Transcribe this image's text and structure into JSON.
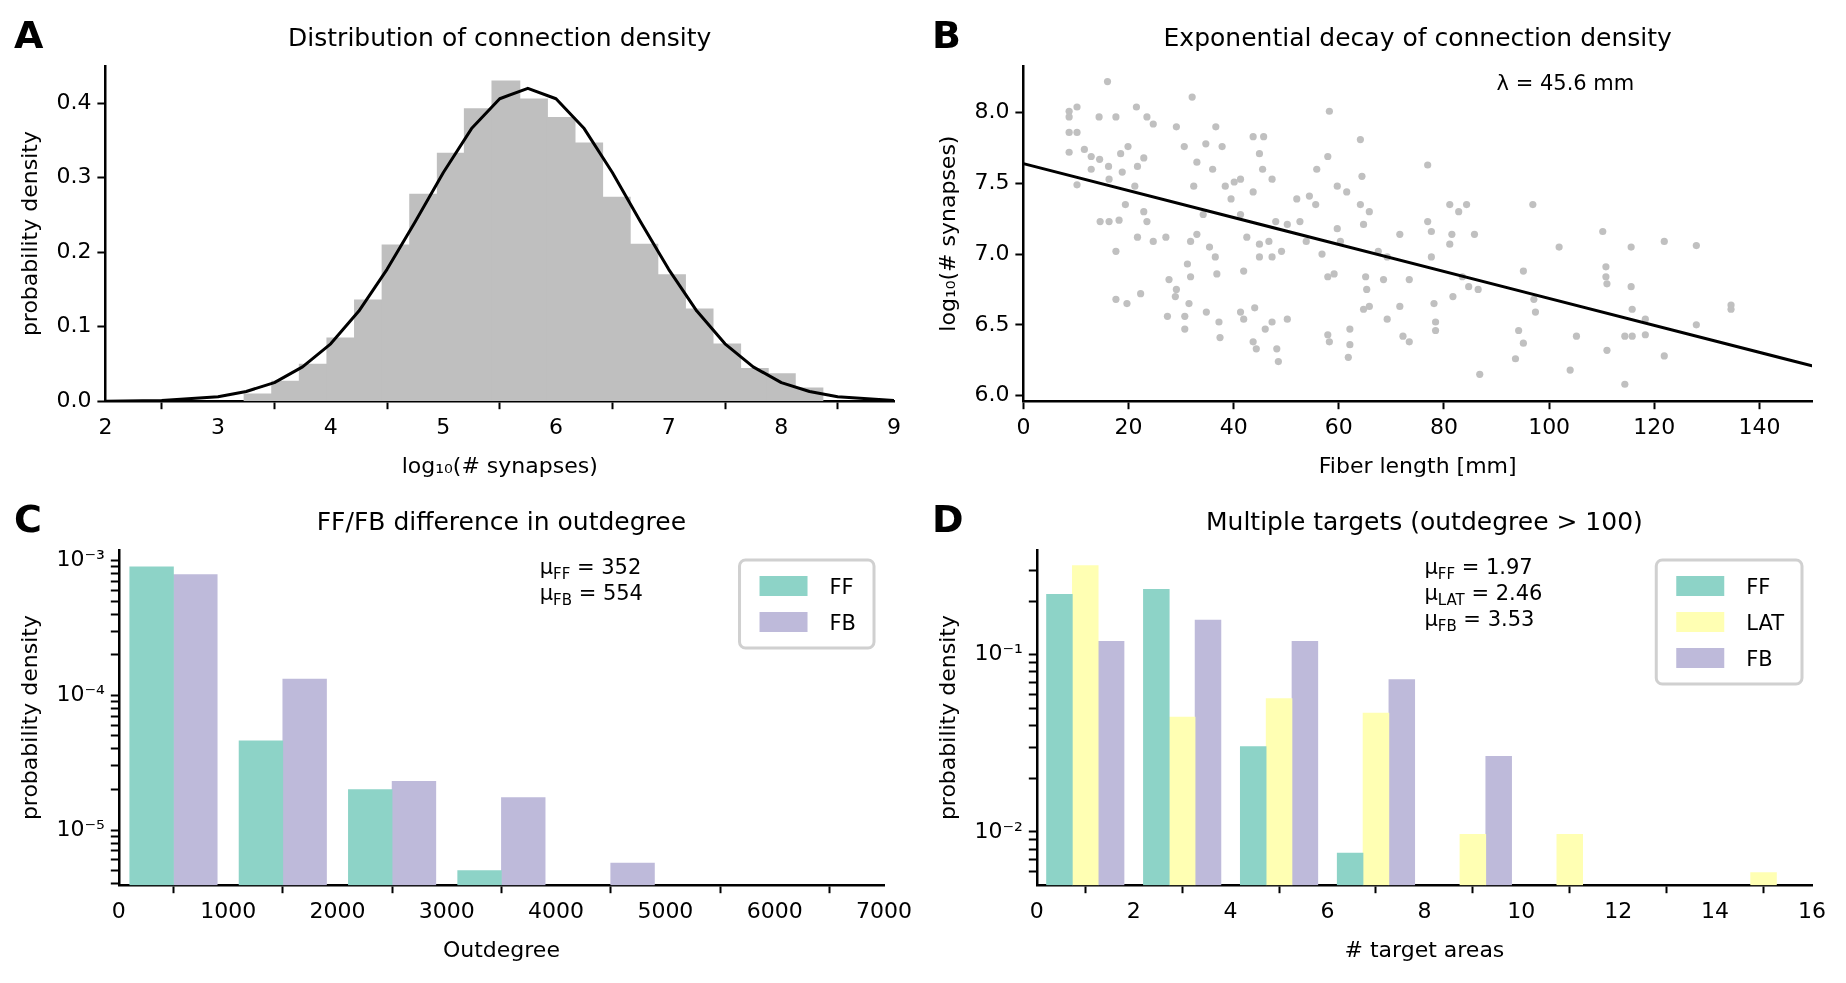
{
  "chart_data": [
    {
      "type": "histogram",
      "title": "Distribution of connection density",
      "xlabel": "log₁₀(# synapses)",
      "ylabel": "probability density",
      "annotations": [
        "A"
      ],
      "bins": [
        3.23,
        3.48,
        3.72,
        3.97,
        4.21,
        4.46,
        4.7,
        4.95,
        5.19,
        5.43,
        5.68,
        5.92,
        6.17,
        6.41,
        6.66,
        6.9,
        7.15,
        7.39,
        7.64,
        7.88,
        8.12,
        8.37
      ],
      "series": [
        {
          "color": "#bfbfbf",
          "values": [
            0.01,
            0.027,
            0.05,
            0.085,
            0.136,
            0.21,
            0.278,
            0.333,
            0.393,
            0.43,
            0.406,
            0.381,
            0.347,
            0.274,
            0.211,
            0.17,
            0.124,
            0.077,
            0.044,
            0.037,
            0.018
          ]
        },
        {
          "type": "line",
          "color": "#000000",
          "x": [
            2,
            2.5,
            3,
            3.25,
            3.5,
            3.75,
            4,
            4.25,
            4.5,
            4.75,
            5,
            5.25,
            5.5,
            5.75,
            6,
            6.25,
            6.5,
            6.75,
            7,
            7.25,
            7.5,
            7.75,
            8,
            8.25,
            8.5,
            9
          ],
          "values": [
            0,
            0.001,
            0.006,
            0.013,
            0.025,
            0.046,
            0.077,
            0.121,
            0.177,
            0.241,
            0.307,
            0.366,
            0.406,
            0.42,
            0.406,
            0.366,
            0.307,
            0.241,
            0.177,
            0.121,
            0.077,
            0.046,
            0.025,
            0.013,
            0.006,
            0.001
          ]
        }
      ],
      "xlim": [
        2,
        9
      ],
      "xticks": [
        2,
        3,
        4,
        5,
        6,
        7,
        8,
        9
      ],
      "ylim": [
        0,
        0.45
      ],
      "yticks": [
        {
          "value": 0,
          "label": "0.0"
        },
        0.1,
        0.2,
        0.3,
        0.4
      ]
    },
    {
      "type": "scatter",
      "title": "Exponential decay of connection density",
      "xlabel": "Fiber length [mm]",
      "ylabel": "log₁₀(# synapses)",
      "annotations": [
        "B",
        "λ = 45.6 mm"
      ],
      "series": [
        {
          "color": "#c0c0c0",
          "marker": "circle",
          "x": [
            8.7,
            8.7,
            10.2,
            8.7,
            10.2,
            8.7,
            10.2,
            16.0,
            14.4,
            17.6,
            21.5,
            23.5,
            24.7,
            29.1,
            32.1,
            30.6,
            11.6,
            12.9,
            14.5,
            16.2,
            18.5,
            19.9,
            21.7,
            22.9,
            12.9,
            16.3,
            18.8,
            21.2,
            14.6,
            16.3,
            19.4,
            18.2,
            22.9,
            23.5,
            24.7,
            21.7,
            17.6,
            17.6,
            19.7,
            22.3,
            27.1,
            27.7,
            29.1,
            28.9,
            27.4,
            30.7,
            30.7,
            31.5,
            31.8,
            31.2,
            31.8,
            33.0,
            34.2,
            34.8,
            37.2,
            37.4,
            36.8,
            36.5,
            35.4,
            32.4,
            33.0,
            34.7,
            36.6,
            37.8,
            36.0,
            38.4,
            39.5,
            40.1,
            41.3,
            43.7,
            45.7,
            44.9,
            45.5,
            47.3,
            43.7,
            41.3,
            42.5,
            44.9,
            46.7,
            47.3,
            44.9,
            41.9,
            41.3,
            41.9,
            44.0,
            43.7,
            44.3,
            46.0,
            47.3,
            48.2,
            48.5,
            50.2,
            49.1,
            48.0,
            50.2,
            52.0,
            52.6,
            53.8,
            54.4,
            55.6,
            55.8,
            56.8,
            58.2,
            57.9,
            57.9,
            57.9,
            58.2,
            59.7,
            59.7,
            60.3,
            59.1,
            61.5,
            61.8,
            62.1,
            62.1,
            64.1,
            64.4,
            64.1,
            64.7,
            65.1,
            65.3,
            65.8,
            65.8,
            64.7,
            67.5,
            69.2,
            69.2,
            68.5,
            71.6,
            71.6,
            72.2,
            73.4,
            73.4,
            76.9,
            76.9,
            77.6,
            77.6,
            78.1,
            78.4,
            78.4,
            81.1,
            81.5,
            81.1,
            81.7,
            82.8,
            84.3,
            83.5,
            84.7,
            85.8,
            86.5,
            86.8,
            95.1,
            94.2,
            93.6,
            95.1,
            96.9,
            97.1,
            97.4,
            101.9,
            104.0,
            105.2,
            110.2,
            110.8,
            110.8,
            111.0,
            111.0,
            114.4,
            115.6,
            115.6,
            115.8,
            115.8,
            114.4,
            118.3,
            118.3,
            121.9,
            121.9,
            128.0,
            128.0,
            134.6,
            134.6
          ],
          "values": [
            8.01,
            7.97,
            8.04,
            7.86,
            7.86,
            7.72,
            7.49,
            8.22,
            7.97,
            7.97,
            8.04,
            7.97,
            7.92,
            7.9,
            8.11,
            7.76,
            7.74,
            7.69,
            7.67,
            7.62,
            7.71,
            7.76,
            7.62,
            7.68,
            7.6,
            7.53,
            7.58,
            7.48,
            7.23,
            7.23,
            7.35,
            7.24,
            7.3,
            7.23,
            7.09,
            7.12,
            7.02,
            6.68,
            6.65,
            6.72,
            7.12,
            6.82,
            6.75,
            6.7,
            6.56,
            6.56,
            6.47,
            6.65,
            6.84,
            6.93,
            7.09,
            7.14,
            7.28,
            6.59,
            6.52,
            6.41,
            6.86,
            6.98,
            7.05,
            7.48,
            7.65,
            7.78,
            7.9,
            7.76,
            7.6,
            7.48,
            7.39,
            7.51,
            7.53,
            7.83,
            7.83,
            7.71,
            7.6,
            7.53,
            7.44,
            7.28,
            7.12,
            7.07,
            7.09,
            6.98,
            6.98,
            6.88,
            6.59,
            6.54,
            6.62,
            6.38,
            6.33,
            6.47,
            6.52,
            6.33,
            6.24,
            6.54,
            7.02,
            7.23,
            7.21,
            7.39,
            7.23,
            7.09,
            7.41,
            7.35,
            7.6,
            7.0,
            8.01,
            7.69,
            6.84,
            6.43,
            6.38,
            7.48,
            7.18,
            7.09,
            6.86,
            7.44,
            6.27,
            6.47,
            6.36,
            7.81,
            7.55,
            7.35,
            7.21,
            6.84,
            6.75,
            7.3,
            6.63,
            6.61,
            7.02,
            6.98,
            6.54,
            6.82,
            7.14,
            6.63,
            6.42,
            6.38,
            6.82,
            7.63,
            7.23,
            7.16,
            6.98,
            6.65,
            6.52,
            6.46,
            7.35,
            7.14,
            7.07,
            6.7,
            7.3,
            7.35,
            6.84,
            6.77,
            7.14,
            6.75,
            6.15,
            6.88,
            6.46,
            6.26,
            6.37,
            7.35,
            6.68,
            6.59,
            7.05,
            6.18,
            6.42,
            7.16,
            6.91,
            6.84,
            6.79,
            6.32,
            6.08,
            7.05,
            6.77,
            6.61,
            6.42,
            6.42,
            6.54,
            6.43,
            7.09,
            6.28,
            7.06,
            6.5,
            6.64,
            6.61
          ]
        },
        {
          "type": "line",
          "color": "#000000",
          "x": [
            0,
            150
          ],
          "values": [
            7.64,
            6.21
          ]
        }
      ],
      "xlim": [
        0,
        150
      ],
      "xticks": [
        0,
        20,
        40,
        60,
        80,
        100,
        120,
        140
      ],
      "ylim": [
        5.96,
        8.33
      ],
      "yticks": [
        {
          "value": 6,
          "label": "6.0"
        },
        6.5,
        {
          "value": 7,
          "label": "7.0"
        },
        7.5,
        {
          "value": 8,
          "label": "8.0"
        }
      ]
    },
    {
      "type": "histogram",
      "title": "FF/FB difference in outdegree",
      "xlabel": "Outdegree",
      "ylabel": "probability density",
      "annotations": [
        "C",
        "μ$_{FF}$ = 352",
        "μ$_{FB}$ = 554"
      ],
      "log": "y",
      "legend": "top right",
      "bins": [
        0,
        1000,
        2000,
        3000,
        4000,
        5000
      ],
      "series": [
        {
          "name": "FF",
          "color": "#8dd3c7",
          "values": [
            0.0009,
            4.6e-05,
            2e-05,
            5e-06,
            null
          ]
        },
        {
          "name": "FB",
          "color": "#bebada",
          "values": [
            0.00079,
            0.000132,
            2.3e-05,
            1.74e-05,
            5.7e-06
          ]
        }
      ],
      "xlim": [
        0,
        7000
      ],
      "xticks": [
        0,
        1000,
        2000,
        3000,
        4000,
        5000,
        6000,
        7000
      ],
      "ylim": [
        3.9e-06,
        0.0012
      ],
      "yticks": [
        {
          "value": 4e-06,
          "label": null
        },
        {
          "value": 5e-06,
          "label": null
        },
        {
          "value": 6e-06,
          "label": null
        },
        {
          "value": 7e-06,
          "label": null
        },
        {
          "value": 8e-06,
          "label": null
        },
        {
          "value": 9e-06,
          "label": null
        },
        {
          "value": 1e-05,
          "label": "10⁻⁵"
        },
        {
          "value": 2e-05,
          "label": null
        },
        {
          "value": 3e-05,
          "label": null
        },
        {
          "value": 4e-05,
          "label": null
        },
        {
          "value": 5e-05,
          "label": null
        },
        {
          "value": 6e-05,
          "label": null
        },
        {
          "value": 7e-05,
          "label": null
        },
        {
          "value": 8e-05,
          "label": null
        },
        {
          "value": 9e-05,
          "label": null
        },
        {
          "value": 0.0001,
          "label": "10⁻⁴"
        },
        {
          "value": 0.0002,
          "label": null
        },
        {
          "value": 0.0003,
          "label": null
        },
        {
          "value": 0.0004,
          "label": null
        },
        {
          "value": 0.0005,
          "label": null
        },
        {
          "value": 0.0006,
          "label": null
        },
        {
          "value": 0.0007,
          "label": null
        },
        {
          "value": 0.0008,
          "label": null
        },
        {
          "value": 0.0009,
          "label": null
        },
        {
          "value": 0.001,
          "label": "10⁻³"
        }
      ]
    },
    {
      "type": "histogram",
      "title": "Multiple targets (outdegree > 100)",
      "xlabel": "# target areas",
      "ylabel": "probability density",
      "annotations": [
        "D",
        "μ$_{FF}$ = 1.97",
        "μ$_{LAT}$ = 2.46",
        "μ$_{FB}$ = 3.53"
      ],
      "log": "y",
      "legend": "top right",
      "bins": [
        0,
        2,
        4,
        6,
        8,
        10,
        12,
        14,
        16
      ],
      "series": [
        {
          "name": "FF",
          "color": "#8dd3c7",
          "values": [
            0.219,
            0.234,
            0.0303,
            0.0076,
            null,
            null,
            null,
            null
          ]
        },
        {
          "name": "LAT",
          "color": "#ffffb3",
          "values": [
            0.319,
            0.0445,
            0.0565,
            0.0468,
            0.0097,
            0.0097,
            null,
            0.0059
          ]
        },
        {
          "name": "FB",
          "color": "#bebada",
          "values": [
            0.119,
            0.157,
            0.119,
            0.0723,
            0.0267,
            null,
            null,
            null
          ]
        }
      ],
      "xlim": [
        0,
        16
      ],
      "xticks": [
        0,
        2,
        4,
        6,
        8,
        10,
        12,
        14,
        16
      ],
      "ylim": [
        0.005,
        0.39
      ],
      "yticks": [
        {
          "value": 0.006,
          "label": null
        },
        {
          "value": 0.007,
          "label": null
        },
        {
          "value": 0.008,
          "label": null
        },
        {
          "value": 0.009,
          "label": null
        },
        {
          "value": 0.01,
          "label": "10⁻²"
        },
        {
          "value": 0.02,
          "label": null
        },
        {
          "value": 0.03,
          "label": null
        },
        {
          "value": 0.04,
          "label": null
        },
        {
          "value": 0.05,
          "label": null
        },
        {
          "value": 0.06,
          "label": null
        },
        {
          "value": 0.07,
          "label": null
        },
        {
          "value": 0.08,
          "label": null
        },
        {
          "value": 0.09,
          "label": null
        },
        {
          "value": 0.1,
          "label": "10⁻¹"
        },
        {
          "value": 0.2,
          "label": null
        },
        {
          "value": 0.3,
          "label": null
        }
      ]
    }
  ]
}
